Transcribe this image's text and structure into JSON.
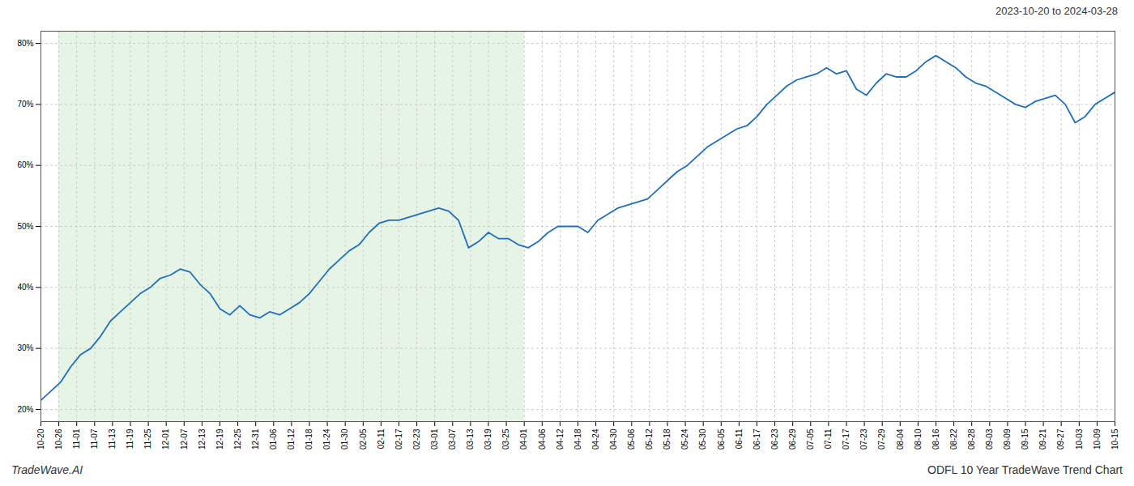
{
  "chart_data": {
    "type": "line",
    "title": "2023-10-20 to 2024-03-28",
    "annotations": [
      "TradeWave.AI",
      "ODFL 10 Year TradeWave Trend Chart"
    ],
    "color": "#1f6fbf",
    "grid": true,
    "x": [
      0,
      0.555555555556,
      1.111111111111,
      1.666666666667,
      2.222222222222,
      2.777777777778,
      3.333333333333,
      3.888888888889,
      4.444444444444,
      5,
      5.555555555556,
      6.111111111111,
      6.666666666667,
      7.222222222222,
      7.777777777778,
      8.333333333333,
      8.888888888889,
      9.444444444444,
      10,
      10.555555555556,
      11.111111111111,
      11.666666666667,
      12.222222222222,
      12.777777777778,
      13.333333333333,
      13.888888888889,
      14.444444444444,
      15,
      15.555555555556,
      16.111111111111,
      16.666666666667,
      17.222222222222,
      17.777777777778,
      18.333333333333,
      18.888888888889,
      19.444444444444,
      20,
      20.555555555556,
      21.111111111111,
      21.666666666667,
      22.222222222222,
      22.777777777778,
      23.333333333333,
      23.888888888889,
      24.444444444444,
      25,
      25.555555555556,
      26.111111111111,
      26.666666666667,
      27.222222222222,
      27.777777777778,
      28.333333333333,
      28.888888888889,
      29.444444444444,
      30,
      30.555555555556,
      31.111111111111,
      31.666666666667,
      32.222222222222,
      32.777777777778,
      33.333333333333,
      33.888888888889,
      34.444444444444,
      35,
      35.555555555556,
      36.111111111111,
      36.666666666667,
      37.222222222222,
      37.777777777778,
      38.333333333333,
      38.888888888889,
      39.444444444444,
      40,
      40.555555555556,
      41.111111111111,
      41.666666666667,
      42.222222222222,
      42.777777777778,
      43.333333333333,
      43.888888888889,
      44.444444444444,
      45,
      45.555555555556,
      46.111111111111,
      46.666666666667,
      47.222222222222,
      47.777777777778,
      48.333333333333,
      48.888888888889,
      49.444444444444,
      50,
      50.555555555556,
      51.111111111111,
      51.666666666667,
      52.222222222222,
      52.777777777778,
      53.333333333333,
      53.888888888889,
      54.444444444444,
      55,
      55.555555555556,
      56.111111111111,
      56.666666666667,
      57.222222222222,
      57.777777777778,
      58.333333333333,
      58.888888888889,
      59.444444444444,
      60
    ],
    "values": [
      0.215,
      0.23,
      0.245,
      0.27,
      0.29,
      0.3,
      0.32,
      0.345,
      0.36,
      0.375,
      0.39,
      0.4,
      0.415,
      0.42,
      0.43,
      0.425,
      0.405,
      0.39,
      0.365,
      0.355,
      0.37,
      0.355,
      0.35,
      0.36,
      0.355,
      0.365,
      0.375,
      0.39,
      0.41,
      0.43,
      0.445,
      0.46,
      0.47,
      0.49,
      0.505,
      0.51,
      0.51,
      0.515,
      0.52,
      0.525,
      0.53,
      0.525,
      0.51,
      0.465,
      0.475,
      0.49,
      0.48,
      0.48,
      0.47,
      0.465,
      0.475,
      0.49,
      0.5,
      0.5,
      0.5,
      0.49,
      0.51,
      0.52,
      0.53,
      0.535,
      0.54,
      0.545,
      0.56,
      0.575,
      0.59,
      0.6,
      0.615,
      0.63,
      0.64,
      0.65,
      0.66,
      0.665,
      0.68,
      0.7,
      0.715,
      0.73,
      0.74,
      0.745,
      0.75,
      0.76,
      0.75,
      0.755,
      0.725,
      0.715,
      0.735,
      0.75,
      0.745,
      0.745,
      0.755,
      0.77,
      0.78,
      0.77,
      0.76,
      0.745,
      0.735,
      0.73,
      0.72,
      0.71,
      0.7,
      0.695,
      0.705,
      0.71,
      0.715,
      0.7,
      0.67,
      0.68,
      0.7,
      0.71,
      0.72
    ],
    "xlim": [
      0,
      60
    ],
    "xticks": [
      {
        "value": 0,
        "label": "10-20"
      },
      {
        "value": 1,
        "label": "10-26"
      },
      {
        "value": 2,
        "label": "11-01"
      },
      {
        "value": 3,
        "label": "11-07"
      },
      {
        "value": 4,
        "label": "11-13"
      },
      {
        "value": 5,
        "label": "11-19"
      },
      {
        "value": 6,
        "label": "11-25"
      },
      {
        "value": 7,
        "label": "12-01"
      },
      {
        "value": 8,
        "label": "12-07"
      },
      {
        "value": 9,
        "label": "12-13"
      },
      {
        "value": 10,
        "label": "12-19"
      },
      {
        "value": 11,
        "label": "12-25"
      },
      {
        "value": 12,
        "label": "12-31"
      },
      {
        "value": 13,
        "label": "01-06"
      },
      {
        "value": 14,
        "label": "01-12"
      },
      {
        "value": 15,
        "label": "01-18"
      },
      {
        "value": 16,
        "label": "01-24"
      },
      {
        "value": 17,
        "label": "01-30"
      },
      {
        "value": 18,
        "label": "02-05"
      },
      {
        "value": 19,
        "label": "02-11"
      },
      {
        "value": 20,
        "label": "02-17"
      },
      {
        "value": 21,
        "label": "02-23"
      },
      {
        "value": 22,
        "label": "03-01"
      },
      {
        "value": 23,
        "label": "03-07"
      },
      {
        "value": 24,
        "label": "03-13"
      },
      {
        "value": 25,
        "label": "03-19"
      },
      {
        "value": 26,
        "label": "03-25"
      },
      {
        "value": 27,
        "label": "04-01"
      },
      {
        "value": 28,
        "label": "04-06"
      },
      {
        "value": 29,
        "label": "04-12"
      },
      {
        "value": 30,
        "label": "04-18"
      },
      {
        "value": 31,
        "label": "04-24"
      },
      {
        "value": 32,
        "label": "04-30"
      },
      {
        "value": 33,
        "label": "05-06"
      },
      {
        "value": 34,
        "label": "05-12"
      },
      {
        "value": 35,
        "label": "05-18"
      },
      {
        "value": 36,
        "label": "05-24"
      },
      {
        "value": 37,
        "label": "05-30"
      },
      {
        "value": 38,
        "label": "06-05"
      },
      {
        "value": 39,
        "label": "06-11"
      },
      {
        "value": 40,
        "label": "06-17"
      },
      {
        "value": 41,
        "label": "06-23"
      },
      {
        "value": 42,
        "label": "06-29"
      },
      {
        "value": 43,
        "label": "07-05"
      },
      {
        "value": 44,
        "label": "07-11"
      },
      {
        "value": 45,
        "label": "07-17"
      },
      {
        "value": 46,
        "label": "07-23"
      },
      {
        "value": 47,
        "label": "07-29"
      },
      {
        "value": 48,
        "label": "08-04"
      },
      {
        "value": 49,
        "label": "08-10"
      },
      {
        "value": 50,
        "label": "08-16"
      },
      {
        "value": 51,
        "label": "08-22"
      },
      {
        "value": 52,
        "label": "08-28"
      },
      {
        "value": 53,
        "label": "09-03"
      },
      {
        "value": 54,
        "label": "09-09"
      },
      {
        "value": 55,
        "label": "09-15"
      },
      {
        "value": 56,
        "label": "09-21"
      },
      {
        "value": 57,
        "label": "09-27"
      },
      {
        "value": 58,
        "label": "10-03"
      },
      {
        "value": 59,
        "label": "10-09"
      },
      {
        "value": 60,
        "label": "10-15"
      }
    ],
    "ylim": [
      0.18,
      0.82
    ],
    "yticks": [
      {
        "value": 0.2,
        "label": "20%"
      },
      {
        "value": 0.3,
        "label": "30%"
      },
      {
        "value": 0.4,
        "label": "40%"
      },
      {
        "value": 0.5,
        "label": "50%"
      },
      {
        "value": 0.6,
        "label": "60%"
      },
      {
        "value": 0.7,
        "label": "70%"
      },
      {
        "value": 0.8,
        "label": "80%"
      }
    ],
    "shade": {
      "start": 1,
      "end": 27,
      "color": "#d4ecd4"
    }
  }
}
